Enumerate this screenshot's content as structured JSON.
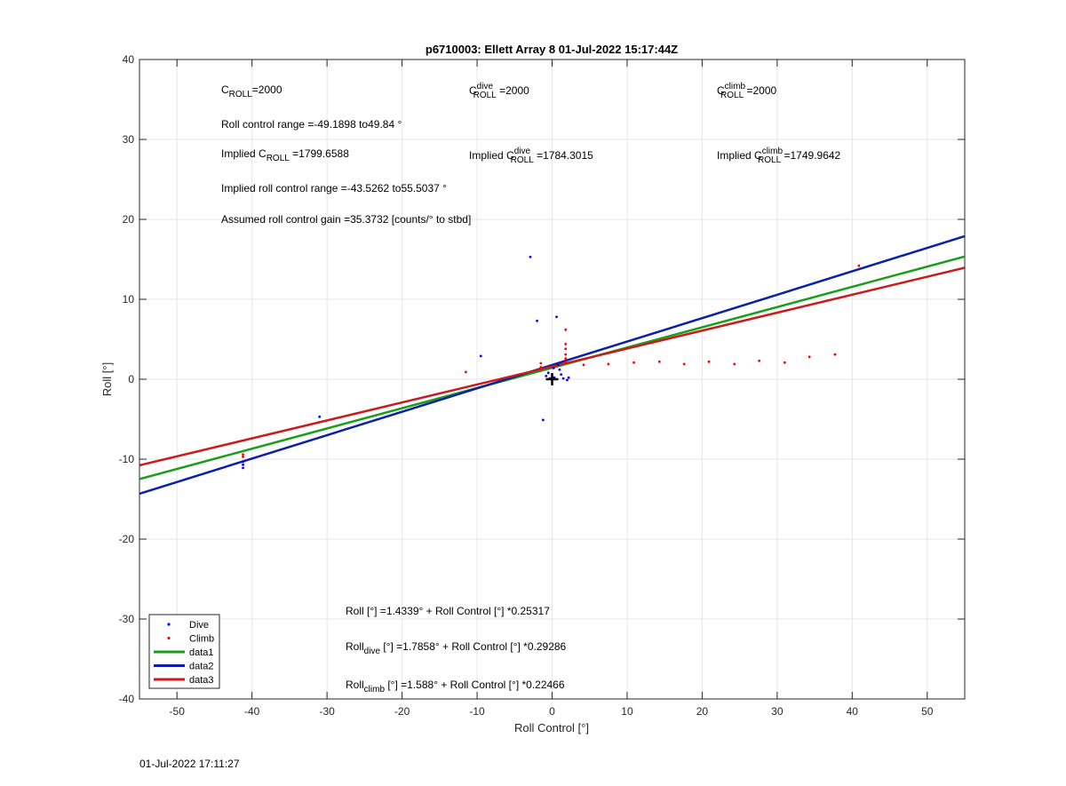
{
  "footer": {
    "timestamp": "01-Jul-2022 17:11:27"
  },
  "chart_data": {
    "type": "scatter",
    "title": "p6710003: Ellett Array 8 01-Jul-2022 15:17:44Z",
    "xlabel": "Roll Control [°]",
    "ylabel": "Roll [°]",
    "xlim": [
      -55,
      55
    ],
    "ylim": [
      -40,
      40
    ],
    "xticks": [
      -50,
      -40,
      -30,
      -20,
      -10,
      0,
      10,
      20,
      30,
      40,
      50
    ],
    "yticks": [
      -40,
      -30,
      -20,
      -10,
      0,
      10,
      20,
      30,
      40
    ],
    "grid": true,
    "legend_position": "bottom-left",
    "colors": {
      "dive": "#0000ff",
      "climb": "#ff0000",
      "data1": "#1a9e1a",
      "data2": "#0a1faa",
      "data3": "#cc1a1a"
    },
    "series": [
      {
        "name": "Dive",
        "kind": "points",
        "x": [
          -41.2,
          -41.2,
          -41.2,
          -31,
          -9.5,
          -2.9,
          -2,
          -1.2,
          -0.8,
          -0.3,
          0,
          0.3,
          0.6,
          1,
          1.2,
          1.5,
          1.8,
          2,
          2.2,
          0.8,
          0.2,
          -0.5
        ],
        "y": [
          -10.3,
          -10.7,
          -11.1,
          -4.7,
          2.9,
          15.3,
          7.3,
          -5.1,
          0.4,
          0.1,
          0.3,
          0.2,
          7.8,
          1.2,
          0.6,
          0.1,
          2.3,
          -0.1,
          0.2,
          1.8,
          1.4,
          0.8
        ]
      },
      {
        "name": "Climb",
        "kind": "points",
        "x": [
          -41.2,
          -41.2,
          -11.5,
          -1.5,
          -1.5,
          1.8,
          1.8,
          1.8,
          1.8,
          1.8,
          1.8,
          4.2,
          7.5,
          10.9,
          14.3,
          17.6,
          20.9,
          24.3,
          27.6,
          31,
          34.3,
          37.7,
          40.9
        ],
        "y": [
          -9.4,
          -9.7,
          0.9,
          1.5,
          2,
          6.2,
          4.4,
          3.8,
          3.1,
          2.6,
          2.2,
          1.8,
          1.9,
          2.1,
          2.2,
          1.9,
          2.2,
          1.9,
          2.3,
          2.1,
          2.8,
          3.1,
          14.2
        ]
      },
      {
        "name": "data1",
        "kind": "line",
        "intercept": 1.4339,
        "slope": 0.25317
      },
      {
        "name": "data2",
        "kind": "line",
        "intercept": 1.7858,
        "slope": 0.29286
      },
      {
        "name": "data3",
        "kind": "line",
        "intercept": 1.588,
        "slope": 0.22466
      }
    ],
    "marker": {
      "x": 0,
      "y": 0
    },
    "annotations": {
      "c_roll": {
        "pre": "C",
        "sub": "ROLL",
        "sup": "",
        "post": "=2000"
      },
      "c_roll_dive": {
        "pre": "C",
        "sub": "ROLL",
        "sup": "dive",
        "post": " =2000"
      },
      "c_roll_climb": {
        "pre": "C",
        "sub": "ROLL",
        "sup": "climb",
        "post": " =2000"
      },
      "range": "Roll control range =-49.1898 to49.84 °",
      "implied": {
        "pre": "Implied C",
        "sub": "ROLL",
        "sup": "",
        "post": " =1799.6588"
      },
      "implied_dive": {
        "pre": "Implied C",
        "sub": "ROLL",
        "sup": "dive",
        "post": " =1784.3015"
      },
      "implied_climb": {
        "pre": "Implied C",
        "sub": "ROLL",
        "sup": "climb",
        "post": " =1749.9642"
      },
      "implied_range": "Implied roll control range =-43.5262 to55.5037 °",
      "gain": "Assumed roll control gain =35.3732 [counts/° to stbd]",
      "fit_all": {
        "pre": "Roll",
        "sub": "",
        "post": " [°] =1.4339° + Roll Control [°] *0.25317"
      },
      "fit_dive": {
        "pre": "Roll",
        "sub": "dive",
        "post": " [°] =1.7858° + Roll Control [°] *0.29286"
      },
      "fit_climb": {
        "pre": "Roll",
        "sub": "climb",
        "post": " [°] =1.588° + Roll Control [°] *0.22466"
      }
    }
  }
}
